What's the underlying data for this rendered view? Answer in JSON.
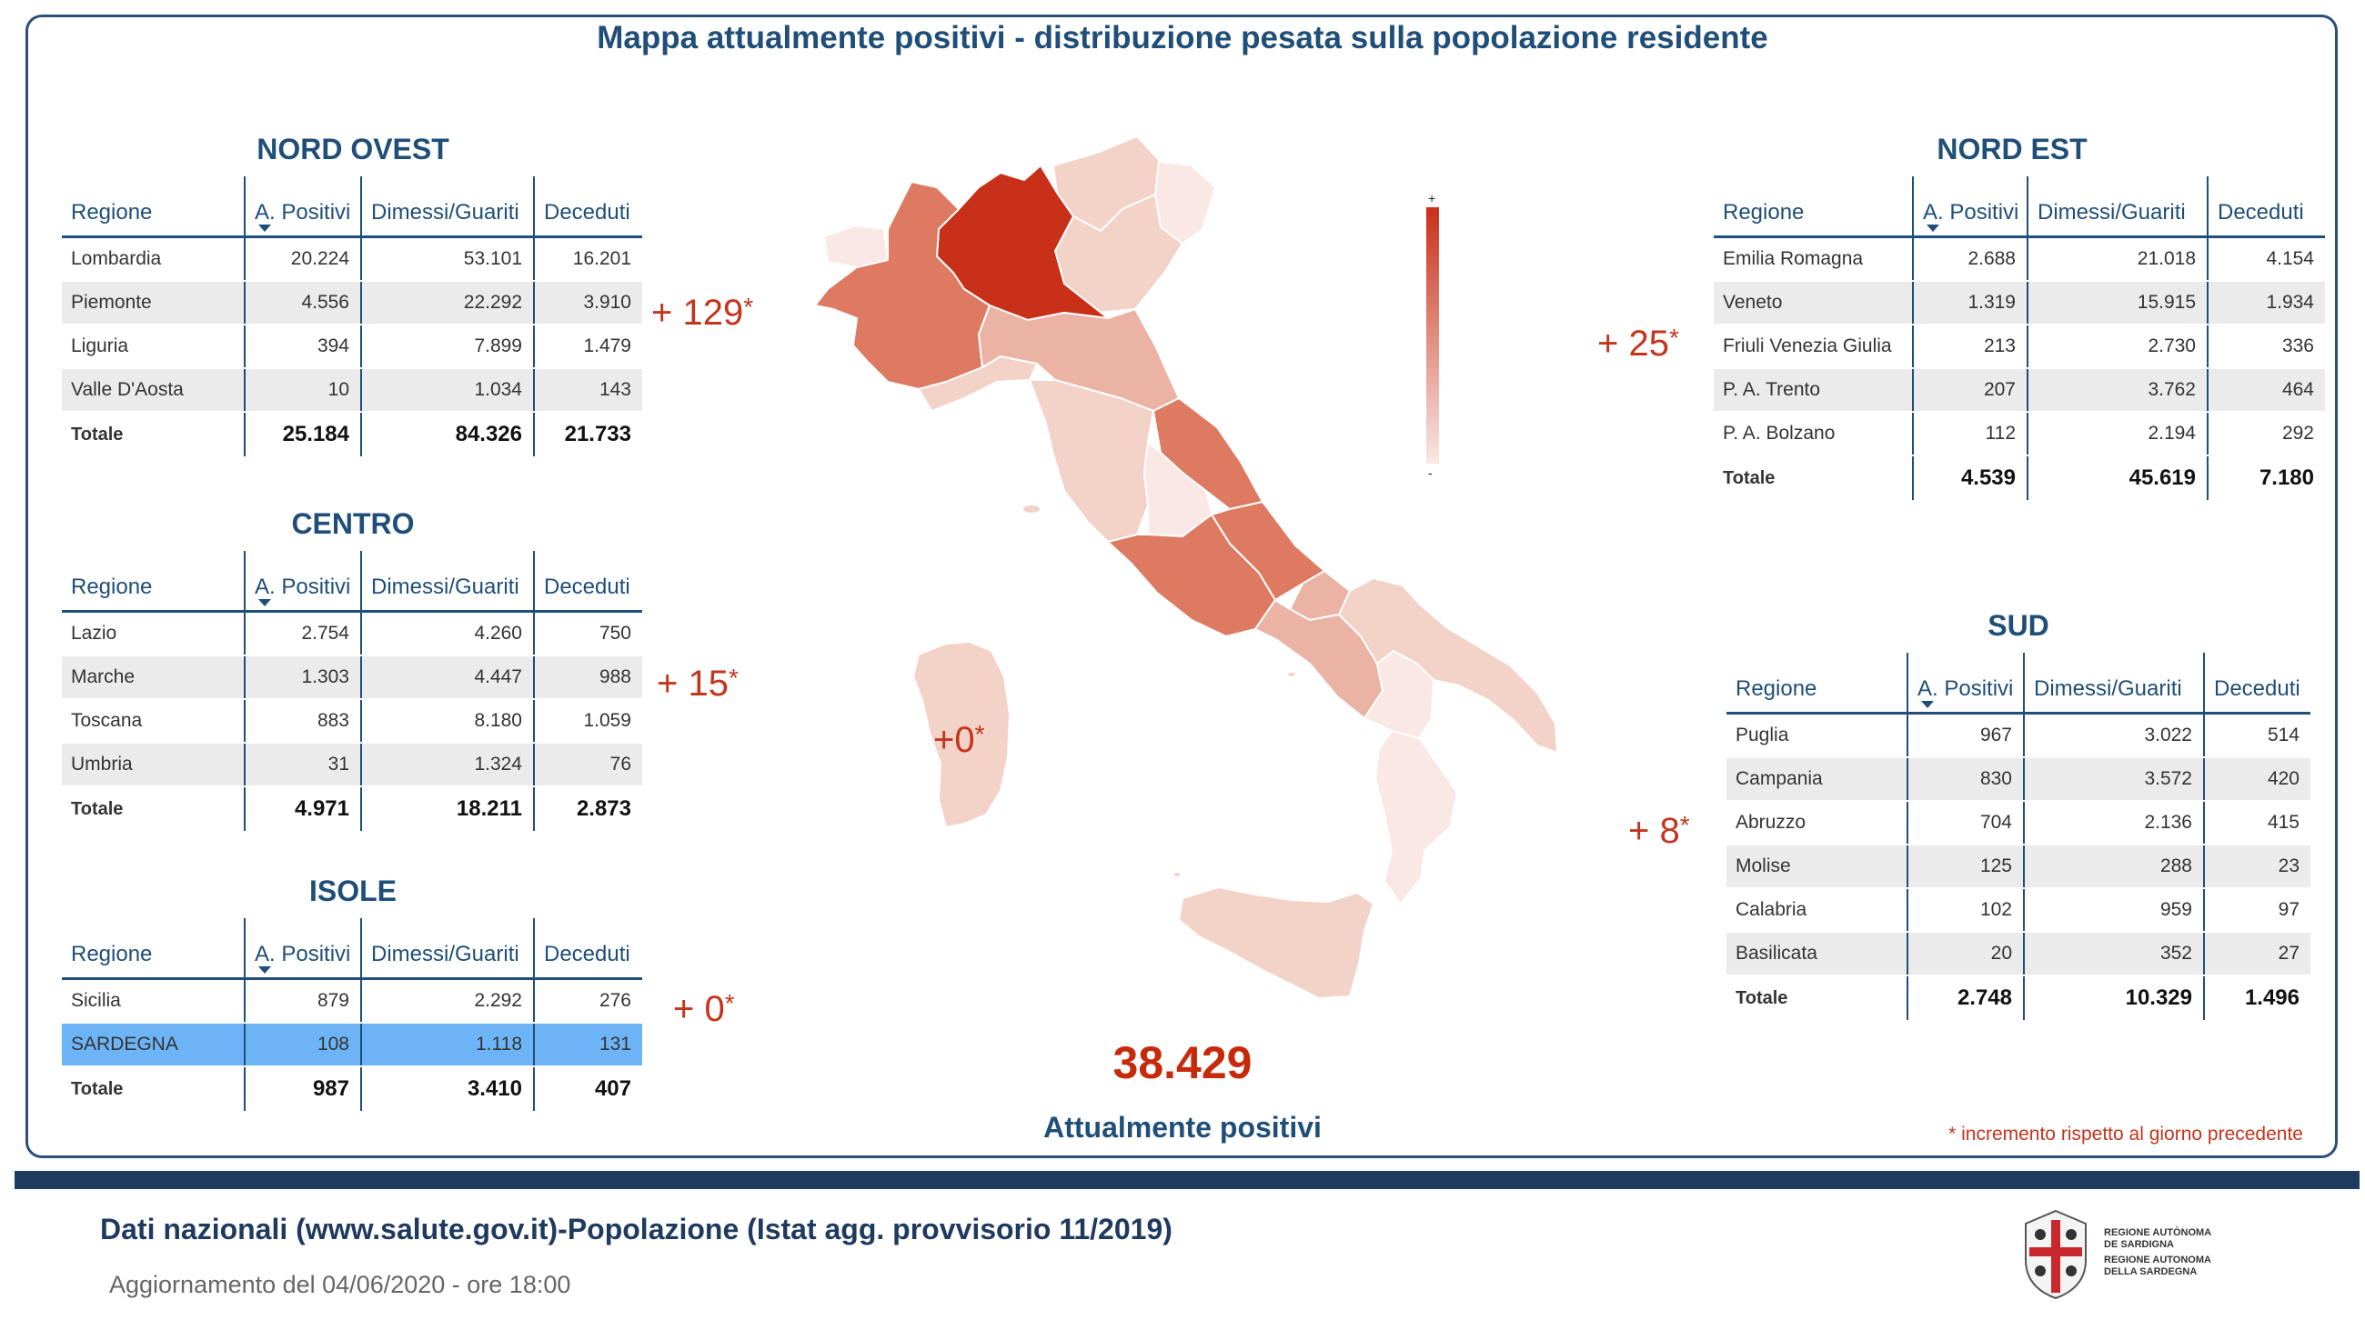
{
  "title": "Mappa attualmente positivi - distribuzione pesata sulla popolazione residente",
  "columns": [
    "Regione",
    "A. Positivi",
    "Dimessi/Guariti",
    "Deceduti"
  ],
  "nord_ovest": {
    "title": "NORD OVEST",
    "increment": "+ 129",
    "rows": [
      {
        "regione": "Lombardia",
        "positivi": "20.224",
        "guariti": "53.101",
        "deceduti": "16.201"
      },
      {
        "regione": "Piemonte",
        "positivi": "4.556",
        "guariti": "22.292",
        "deceduti": "3.910"
      },
      {
        "regione": "Liguria",
        "positivi": "394",
        "guariti": "7.899",
        "deceduti": "1.479"
      },
      {
        "regione": "Valle D'Aosta",
        "positivi": "10",
        "guariti": "1.034",
        "deceduti": "143"
      }
    ],
    "totale": {
      "label": "Totale",
      "positivi": "25.184",
      "guariti": "84.326",
      "deceduti": "21.733"
    }
  },
  "centro": {
    "title": "CENTRO",
    "increment": "+ 15",
    "rows": [
      {
        "regione": "Lazio",
        "positivi": "2.754",
        "guariti": "4.260",
        "deceduti": "750"
      },
      {
        "regione": "Marche",
        "positivi": "1.303",
        "guariti": "4.447",
        "deceduti": "988"
      },
      {
        "regione": "Toscana",
        "positivi": "883",
        "guariti": "8.180",
        "deceduti": "1.059"
      },
      {
        "regione": "Umbria",
        "positivi": "31",
        "guariti": "1.324",
        "deceduti": "76"
      }
    ],
    "totale": {
      "label": "Totale",
      "positivi": "4.971",
      "guariti": "18.211",
      "deceduti": "2.873"
    }
  },
  "isole": {
    "title": "ISOLE",
    "increment": "+ 0",
    "rows": [
      {
        "regione": "Sicilia",
        "positivi": "879",
        "guariti": "2.292",
        "deceduti": "276"
      },
      {
        "regione": "SARDEGNA",
        "positivi": "108",
        "guariti": "1.118",
        "deceduti": "131"
      }
    ],
    "totale": {
      "label": "Totale",
      "positivi": "987",
      "guariti": "3.410",
      "deceduti": "407"
    }
  },
  "nord_est": {
    "title": "NORD EST",
    "increment": "+ 25",
    "rows": [
      {
        "regione": "Emilia Romagna",
        "positivi": "2.688",
        "guariti": "21.018",
        "deceduti": "4.154"
      },
      {
        "regione": "Veneto",
        "positivi": "1.319",
        "guariti": "15.915",
        "deceduti": "1.934"
      },
      {
        "regione": "Friuli Venezia Giulia",
        "positivi": "213",
        "guariti": "2.730",
        "deceduti": "336"
      },
      {
        "regione": "P. A. Trento",
        "positivi": "207",
        "guariti": "3.762",
        "deceduti": "464"
      },
      {
        "regione": "P. A. Bolzano",
        "positivi": "112",
        "guariti": "2.194",
        "deceduti": "292"
      }
    ],
    "totale": {
      "label": "Totale",
      "positivi": "4.539",
      "guariti": "45.619",
      "deceduti": "7.180"
    }
  },
  "sud": {
    "title": "SUD",
    "increment": "+ 8",
    "rows": [
      {
        "regione": "Puglia",
        "positivi": "967",
        "guariti": "3.022",
        "deceduti": "514"
      },
      {
        "regione": "Campania",
        "positivi": "830",
        "guariti": "3.572",
        "deceduti": "420"
      },
      {
        "regione": "Abruzzo",
        "positivi": "704",
        "guariti": "2.136",
        "deceduti": "415"
      },
      {
        "regione": "Molise",
        "positivi": "125",
        "guariti": "288",
        "deceduti": "23"
      },
      {
        "regione": "Calabria",
        "positivi": "102",
        "guariti": "959",
        "deceduti": "97"
      },
      {
        "regione": "Basilicata",
        "positivi": "20",
        "guariti": "352",
        "deceduti": "27"
      }
    ],
    "totale": {
      "label": "Totale",
      "positivi": "2.748",
      "guariti": "10.329",
      "deceduti": "1.496"
    }
  },
  "map": {
    "sardegna_increment": "+0",
    "legend_plus": "+",
    "legend_minus": "-",
    "colors": {
      "max": "#c9301a",
      "high": "#de7a62",
      "mid": "#eab3a3",
      "low": "#f3d2c8",
      "min": "#f9e8e4"
    }
  },
  "summary": {
    "total": "38.429",
    "label": "Attualmente positivi"
  },
  "star": "*",
  "note": "* incremento rispetto al giorno precedente",
  "footer": {
    "source": "Dati nazionali (www.salute.gov.it)-Popolazione (Istat agg. provvisorio 11/2019)",
    "update": "Aggiornamento del 04/06/2020 - ore 18:00",
    "logo_line1": "REGIONE AUTÒNOMA",
    "logo_line2": "DE SARDIGNA",
    "logo_line3": "REGIONE AUTONOMA",
    "logo_line4": "DELLA SARDEGNA"
  },
  "colors": {
    "accent": "#1f4e79",
    "increment": "#c5341d",
    "selected_row": "#6cb4f5"
  }
}
